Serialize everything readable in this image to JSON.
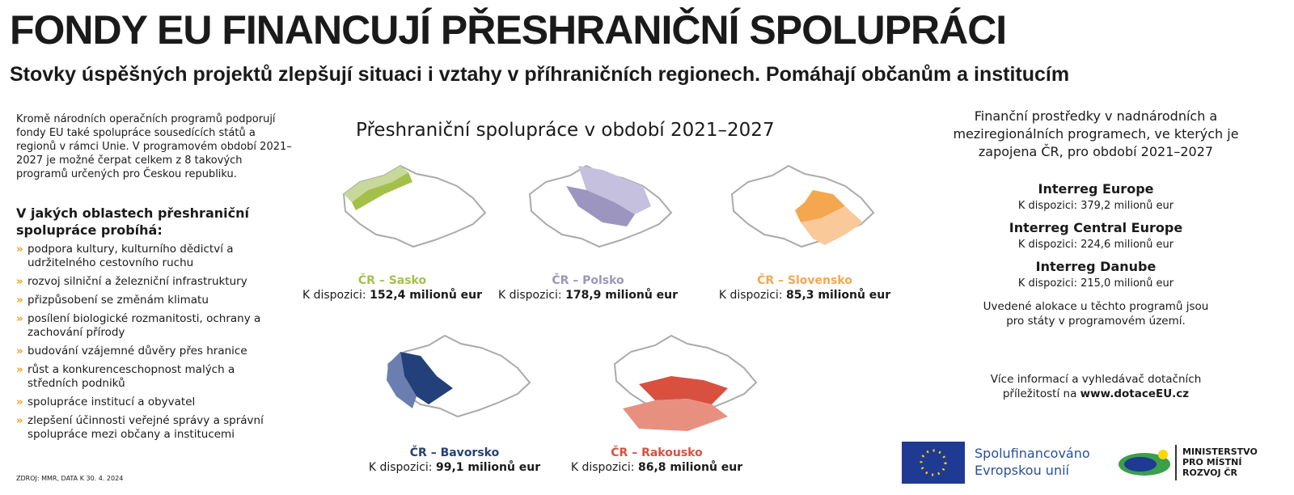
{
  "header": {
    "title": "FONDY EU FINANCUJÍ PŘESHRANIČNÍ SPOLUPRÁCI",
    "subtitle": "Stovky úspěšných projektů zlepšují situaci i vztahy v příhraničních regionech. Pomáhají občanům a institucím"
  },
  "intro": "Kromě národních operačních programů podporují fondy EU také spolupráce sousedících států a regionů v rámci Unie. V programovém období 2021–2027 je možné čerpat celkem z 8 takových programů určených pro Českou republiku.",
  "areas": {
    "title": "V jakých oblastech přeshraniční spolupráce probíhá:",
    "items": [
      "podpora kultury, kulturního dědictví a udržitelného cestovního ruchu",
      "rozvoj silniční a železniční infrastruktury",
      "přizpůsobení se změnám klimatu",
      "posílení biologické rozmanitosti, ochrany a zachování přírody",
      "budování vzájemné důvěry přes hranice",
      "růst a konkurenceschopnost malých a středních podniků",
      "spolupráce institucí a obyvatel",
      "zlepšení účinnosti veřejné správy a správní spolupráce mezi občany a institucemi"
    ]
  },
  "source": "ZDROJ: MMR, DATA K 30. 4. 2024",
  "maps": {
    "title": "Přeshraniční spolupráce v období 2021–2027",
    "programs": [
      {
        "name": "ČR – Sasko",
        "label": "K dispozici:",
        "amount": "152,4 milionů eur"
      },
      {
        "name": "ČR – Polsko",
        "label": "K dispozici:",
        "amount": "178,9 milionů eur"
      },
      {
        "name": "ČR – Slovensko",
        "label": "K dispozici:",
        "amount": "85,3 milionů eur"
      },
      {
        "name": "ČR – Bavorsko",
        "label": "K dispozici:",
        "amount": "99,1 milionů eur"
      },
      {
        "name": "ČR – Rakousko",
        "label": "K dispozici:",
        "amount": "86,8 milionů eur"
      }
    ]
  },
  "right": {
    "title": "Finanční prostředky v nadnárodních a meziregionálních programech, ve kterých je zapojena ČR, pro období 2021–2027",
    "programs": [
      {
        "name": "Interreg Europe",
        "text": "K dispozici: 379,2 milionů eur"
      },
      {
        "name": "Interreg Central Europe",
        "text": "K dispozici: 224,6 milionů eur"
      },
      {
        "name": "Interreg Danube",
        "text": "K dispozici: 215,0 milionů eur"
      }
    ],
    "note": "Uvedené alokace u těchto programů jsou pro státy v programovém území.",
    "more_text": "Více informací a vyhledávač dotačních příležitostí na",
    "more_link": "www.dotaceEU.cz"
  },
  "logos": {
    "eu": [
      "Spolufinancováno",
      "Evropskou unií"
    ],
    "mmr": [
      "MINISTERSTVO",
      "PRO MÍSTNÍ",
      "ROZVOJ ČR"
    ]
  }
}
